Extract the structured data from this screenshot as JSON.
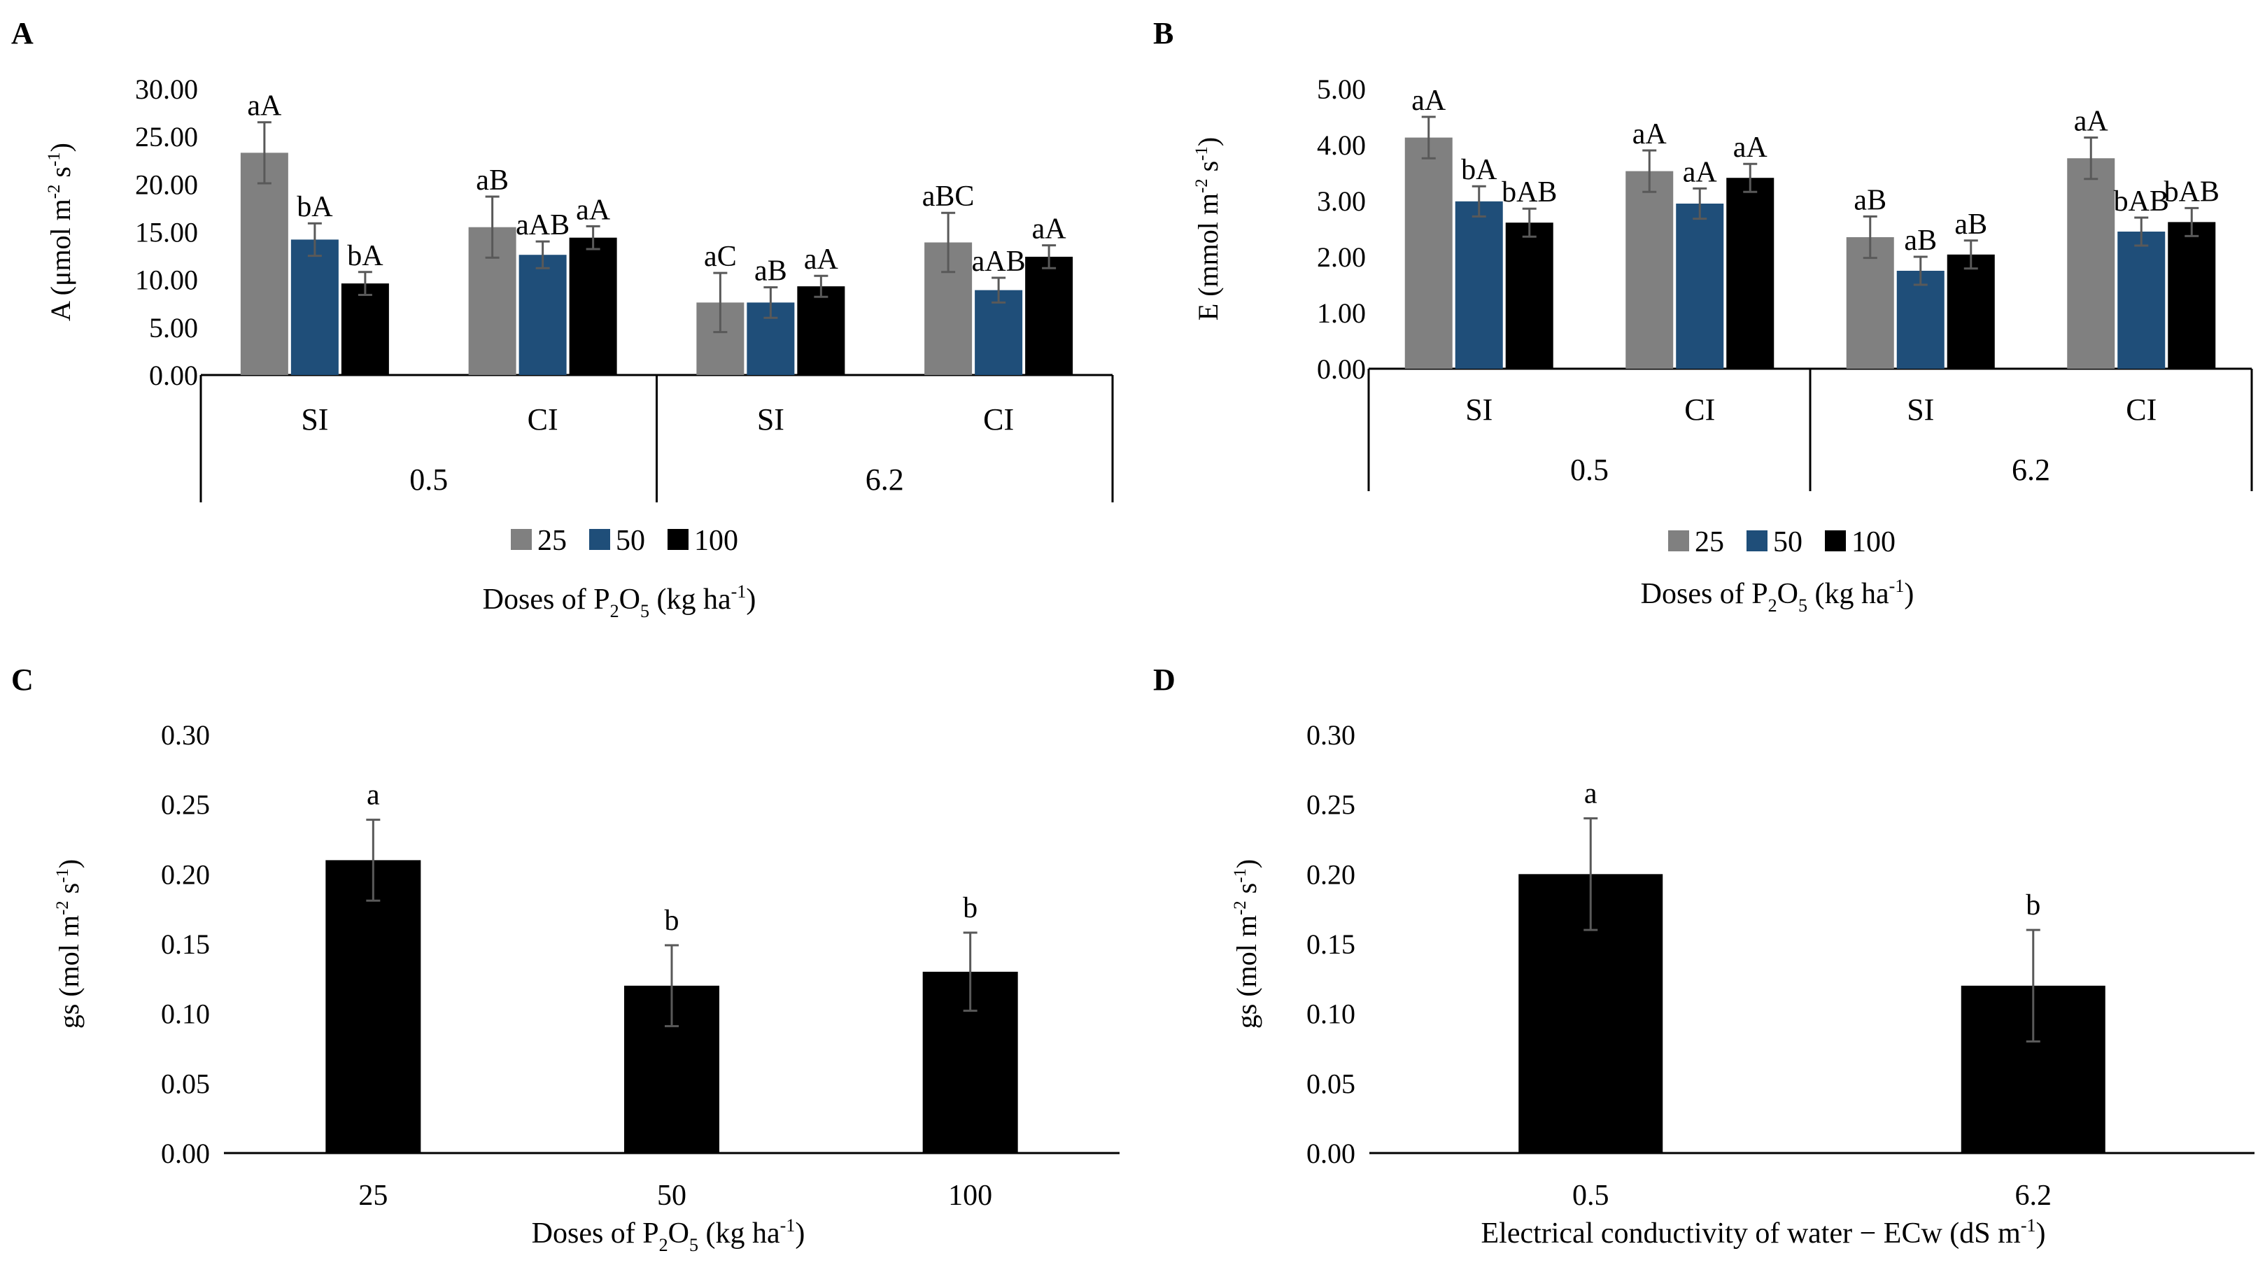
{
  "chart_data": [
    {
      "panel": "A",
      "type": "bar",
      "ylabel": "A (μmol m⁻² s⁻¹)",
      "ylabel_parts": [
        "A (μmol m",
        "-2",
        " s",
        "-1",
        ")"
      ],
      "xlabel": "Doses of P₂O₅ (kg ha⁻¹)",
      "xlabel_parts": [
        "Doses of P",
        "2",
        "O",
        "5",
        " (kg ha",
        "-1",
        ")"
      ],
      "ylim": [
        0,
        30
      ],
      "yticks": [
        "0.00",
        "5.00",
        "10.00",
        "15.00",
        "20.00",
        "25.00",
        "30.00"
      ],
      "groups": [
        "0.5",
        "6.2"
      ],
      "subgroups": [
        "SI",
        "CI"
      ],
      "legend": {
        "placement": "bottom",
        "entries": [
          "25",
          "50",
          "100"
        ]
      },
      "series": [
        {
          "name": "25",
          "color": "#808080",
          "values": [
            23.3,
            15.5,
            7.6,
            13.9
          ],
          "errors": [
            3.2,
            3.2,
            3.1,
            3.1
          ],
          "labels": [
            "aA",
            "aB",
            "aC",
            "aBC"
          ]
        },
        {
          "name": "50",
          "color": "#1f4e79",
          "values": [
            14.2,
            12.6,
            7.6,
            8.9
          ],
          "errors": [
            1.7,
            1.4,
            1.6,
            1.3
          ],
          "labels": [
            "bA",
            "aAB",
            "aB",
            "aAB"
          ]
        },
        {
          "name": "100",
          "color": "#000000",
          "values": [
            9.6,
            14.4,
            9.3,
            12.4
          ],
          "errors": [
            1.2,
            1.2,
            1.1,
            1.2
          ],
          "labels": [
            "bA",
            "aA",
            "aA",
            "aA"
          ]
        }
      ]
    },
    {
      "panel": "B",
      "type": "bar",
      "ylabel": "E (mmol m⁻² s⁻¹)",
      "ylabel_parts": [
        "E (mmol m",
        "-2",
        " s",
        "-1",
        ")"
      ],
      "xlabel": "Doses of P₂O₅ (kg ha⁻¹)",
      "xlabel_parts": [
        "Doses of P",
        "2",
        "O",
        "5",
        " (kg ha",
        "-1",
        ")"
      ],
      "ylim": [
        0,
        5
      ],
      "yticks": [
        "0.00",
        "1.00",
        "2.00",
        "3.00",
        "4.00",
        "5.00"
      ],
      "groups": [
        "0.5",
        "6.2"
      ],
      "subgroups": [
        "SI",
        "CI"
      ],
      "legend": {
        "placement": "bottom",
        "entries": [
          "25",
          "50",
          "100"
        ]
      },
      "series": [
        {
          "name": "25",
          "color": "#808080",
          "values": [
            4.13,
            3.53,
            2.35,
            3.76
          ],
          "errors": [
            0.37,
            0.37,
            0.37,
            0.37
          ],
          "labels": [
            "aA",
            "aA",
            "aB",
            "aA"
          ]
        },
        {
          "name": "50",
          "color": "#1f4e79",
          "values": [
            2.99,
            2.95,
            1.75,
            2.45
          ],
          "errors": [
            0.27,
            0.27,
            0.25,
            0.25
          ],
          "labels": [
            "bA",
            "aA",
            "aB",
            "bAB"
          ]
        },
        {
          "name": "100",
          "color": "#000000",
          "values": [
            2.61,
            3.41,
            2.04,
            2.62
          ],
          "errors": [
            0.25,
            0.25,
            0.25,
            0.25
          ],
          "labels": [
            "bAB",
            "aA",
            "aB",
            "bAB"
          ]
        }
      ]
    },
    {
      "panel": "C",
      "type": "bar",
      "ylabel": "gs (mol m⁻² s⁻¹)",
      "ylabel_parts": [
        "gs (mol m",
        "-2",
        " s",
        "-1",
        ")"
      ],
      "xlabel": "Doses of P₂O₅ (kg ha⁻¹)",
      "xlabel_parts": [
        "Doses of P",
        "2",
        "O",
        "5",
        " (kg ha",
        "-1",
        ")"
      ],
      "ylim": [
        0,
        0.3
      ],
      "yticks": [
        "0.00",
        "0.05",
        "0.10",
        "0.15",
        "0.20",
        "0.25",
        "0.30"
      ],
      "categories": [
        "25",
        "50",
        "100"
      ],
      "color": "#000000",
      "values": [
        0.21,
        0.12,
        0.13
      ],
      "errors": [
        0.029,
        0.029,
        0.028
      ],
      "labels": [
        "a",
        "b",
        "b"
      ]
    },
    {
      "panel": "D",
      "type": "bar",
      "ylabel": "gs (mol m⁻² s⁻¹)",
      "ylabel_parts": [
        "gs (mol m",
        "-2",
        " s",
        "-1",
        ")"
      ],
      "xlabel": "Electrical conductivity of water − ECw (dS m⁻¹)",
      "xlabel_parts": [
        "Electrical conductivity of water − ECw (dS m",
        "-1",
        ")"
      ],
      "ylim": [
        0,
        0.3
      ],
      "yticks": [
        "0.00",
        "0.05",
        "0.10",
        "0.15",
        "0.20",
        "0.25",
        "0.30"
      ],
      "categories": [
        "0.5",
        "6.2"
      ],
      "color": "#000000",
      "values": [
        0.2,
        0.12
      ],
      "errors": [
        0.04,
        0.04
      ],
      "labels": [
        "a",
        "b"
      ]
    }
  ]
}
